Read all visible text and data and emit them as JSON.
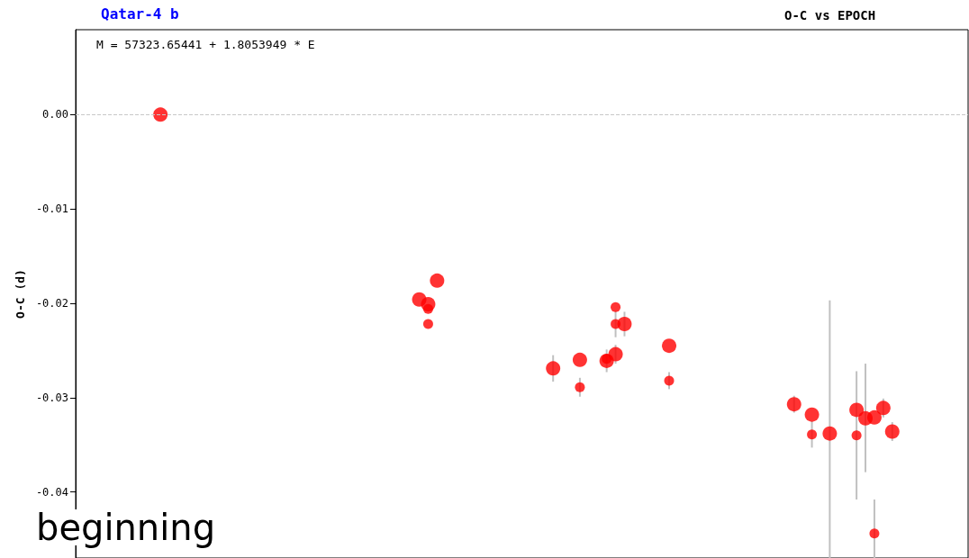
{
  "chart_data": {
    "type": "scatter",
    "title": "Qatar-4 b",
    "subtitle": "O-C vs EPOCH",
    "ylabel": "O-C (d)",
    "annotations": [
      "M = 57323.65441 + 1.8053949 * E",
      "beginning"
    ],
    "categories": [
      null,
      null,
      null,
      null,
      null,
      null,
      null,
      null,
      null,
      null,
      null,
      null,
      null,
      null,
      null,
      null,
      null,
      null,
      null,
      null,
      null,
      null,
      null,
      null,
      null,
      null,
      null,
      null,
      null,
      null,
      null,
      null,
      null,
      null,
      null,
      null,
      null,
      null,
      null,
      null,
      null,
      null,
      null,
      null,
      null,
      null,
      null,
      null,
      null,
      null,
      null,
      null,
      null,
      null,
      null,
      null,
      null,
      null,
      null,
      null,
      null,
      null,
      null,
      null,
      null,
      null,
      null,
      null,
      null,
      null,
      null,
      null,
      null,
      null,
      null,
      null,
      null,
      null,
      null,
      null,
      null,
      null,
      null,
      null,
      null,
      null,
      null,
      null,
      null,
      null,
      null,
      null,
      null,
      null,
      null,
      null,
      null,
      null,
      null,
      null
    ],
    "series": [
      {
        "color": "#ff0000",
        "values": [
          null,
          null,
          null,
          null,
          null,
          null,
          null,
          null,
          null,
          0.0,
          null,
          null,
          null,
          null,
          null,
          null,
          null,
          null,
          null,
          null,
          null,
          null,
          null,
          null,
          null,
          null,
          null,
          null,
          null,
          null,
          null,
          null,
          null,
          null,
          null,
          null,
          null,
          null,
          -0.0196,
          -0.0201,
          -0.0176,
          null,
          null,
          null,
          null,
          null,
          null,
          null,
          null,
          null,
          null,
          null,
          null,
          -0.0269,
          null,
          null,
          -0.026,
          null,
          null,
          -0.0261,
          -0.0254,
          -0.0222,
          null,
          null,
          null,
          null,
          -0.0245,
          null,
          null,
          null,
          null,
          null,
          null,
          null,
          null,
          null,
          null,
          null,
          null,
          null,
          -0.0307,
          null,
          -0.0318,
          null,
          -0.0338,
          null,
          null,
          -0.0313,
          -0.0322,
          -0.0321,
          -0.0311,
          -0.0336,
          null,
          null,
          null,
          null,
          null,
          null,
          null,
          null
        ],
        "errors": [
          null,
          null,
          null,
          null,
          null,
          null,
          null,
          null,
          null,
          null,
          null,
          null,
          null,
          null,
          null,
          null,
          null,
          null,
          null,
          null,
          null,
          null,
          null,
          null,
          null,
          null,
          null,
          null,
          null,
          null,
          null,
          null,
          null,
          null,
          null,
          null,
          null,
          null,
          null,
          null,
          null,
          null,
          null,
          null,
          null,
          null,
          null,
          null,
          null,
          null,
          null,
          null,
          null,
          0.0014,
          null,
          null,
          null,
          null,
          null,
          0.0012,
          0.001,
          0.0013,
          null,
          null,
          null,
          null,
          null,
          null,
          null,
          null,
          null,
          null,
          null,
          null,
          null,
          null,
          null,
          null,
          null,
          null,
          0.0009,
          null,
          null,
          null,
          [
            -0.047,
            -0.0197
          ],
          null,
          null,
          null,
          [
            -0.0379,
            -0.0264
          ],
          null,
          0.001,
          0.001,
          null,
          null,
          null,
          null,
          null,
          null,
          null,
          null
        ]
      },
      {
        "color": "#ff0000",
        "values": [
          null,
          null,
          null,
          null,
          null,
          null,
          null,
          null,
          null,
          null,
          null,
          null,
          null,
          null,
          null,
          null,
          null,
          null,
          null,
          null,
          null,
          null,
          null,
          null,
          null,
          null,
          null,
          null,
          null,
          null,
          null,
          null,
          null,
          null,
          null,
          null,
          null,
          null,
          null,
          -0.0206,
          null,
          null,
          null,
          null,
          null,
          null,
          null,
          null,
          null,
          null,
          null,
          null,
          null,
          null,
          null,
          null,
          -0.0289,
          null,
          null,
          -0.0259,
          -0.0204,
          null,
          null,
          null,
          null,
          null,
          -0.0282,
          null,
          null,
          null,
          null,
          null,
          null,
          null,
          null,
          null,
          null,
          null,
          null,
          null,
          null,
          null,
          -0.0339,
          null,
          null,
          null,
          null,
          -0.034,
          null,
          -0.0444,
          null,
          null,
          null,
          null,
          null,
          null,
          null,
          null,
          null,
          null
        ],
        "errors": [
          null,
          null,
          null,
          null,
          null,
          null,
          null,
          null,
          null,
          null,
          null,
          null,
          null,
          null,
          null,
          null,
          null,
          null,
          null,
          null,
          null,
          null,
          null,
          null,
          null,
          null,
          null,
          null,
          null,
          null,
          null,
          null,
          null,
          null,
          null,
          null,
          null,
          null,
          null,
          null,
          null,
          null,
          null,
          null,
          null,
          null,
          null,
          null,
          null,
          null,
          null,
          null,
          null,
          null,
          null,
          null,
          0.001,
          null,
          null,
          null,
          null,
          null,
          null,
          null,
          null,
          null,
          0.0009,
          null,
          null,
          null,
          null,
          null,
          null,
          null,
          null,
          null,
          null,
          null,
          null,
          null,
          null,
          null,
          0.0014,
          null,
          null,
          null,
          null,
          [
            -0.0408,
            -0.0272
          ],
          null,
          [
            -0.047,
            -0.0408
          ],
          null,
          null,
          null,
          null,
          null,
          null,
          null,
          null,
          null,
          null
        ]
      },
      {
        "color": "#ff0000",
        "values": [
          null,
          null,
          null,
          null,
          null,
          null,
          null,
          null,
          null,
          null,
          null,
          null,
          null,
          null,
          null,
          null,
          null,
          null,
          null,
          null,
          null,
          null,
          null,
          null,
          null,
          null,
          null,
          null,
          null,
          null,
          null,
          null,
          null,
          null,
          null,
          null,
          null,
          null,
          null,
          -0.0222,
          null,
          null,
          null,
          null,
          null,
          null,
          null,
          null,
          null,
          null,
          null,
          null,
          null,
          null,
          null,
          null,
          null,
          null,
          null,
          null,
          -0.0222,
          null,
          null,
          null,
          null,
          null,
          null,
          null,
          null,
          null,
          null,
          null,
          null,
          null,
          null,
          null,
          null,
          null,
          null,
          null,
          null,
          null,
          null,
          null,
          null,
          null,
          null,
          null,
          null,
          null,
          null,
          null,
          null,
          null,
          null,
          null,
          null,
          null,
          null,
          null
        ],
        "errors": [
          null,
          null,
          null,
          null,
          null,
          null,
          null,
          null,
          null,
          null,
          null,
          null,
          null,
          null,
          null,
          null,
          null,
          null,
          null,
          null,
          null,
          null,
          null,
          null,
          null,
          null,
          null,
          null,
          null,
          null,
          null,
          null,
          null,
          null,
          null,
          null,
          null,
          null,
          null,
          null,
          null,
          null,
          null,
          null,
          null,
          null,
          null,
          null,
          null,
          null,
          null,
          null,
          null,
          null,
          null,
          null,
          null,
          null,
          null,
          null,
          0.0014,
          null,
          null,
          null,
          null,
          null,
          null,
          null,
          null,
          null,
          null,
          null,
          null,
          null,
          null,
          null,
          null,
          null,
          null,
          null,
          null,
          null,
          null,
          null,
          null,
          null,
          null,
          null,
          null,
          null,
          null,
          null,
          null,
          null,
          null,
          null,
          null,
          null,
          null,
          null
        ]
      }
    ],
    "ylim": [
      -0.047,
      0.009
    ],
    "yticks": [
      {
        "value": 0,
        "label": "0.00"
      },
      {
        "value": -0.01,
        "label": "-0.01"
      },
      {
        "value": -0.02,
        "label": "-0.02"
      },
      {
        "value": -0.03,
        "label": "-0.03"
      },
      {
        "value": -0.04,
        "label": "-0.04"
      }
    ],
    "ref_lines": [
      {
        "axis": "y",
        "value": 0,
        "label": null,
        "color": "#c8c8c8",
        "line_style": "dashed"
      }
    ],
    "tick_labels": "y",
    "grid": false,
    "marker": "circle"
  }
}
